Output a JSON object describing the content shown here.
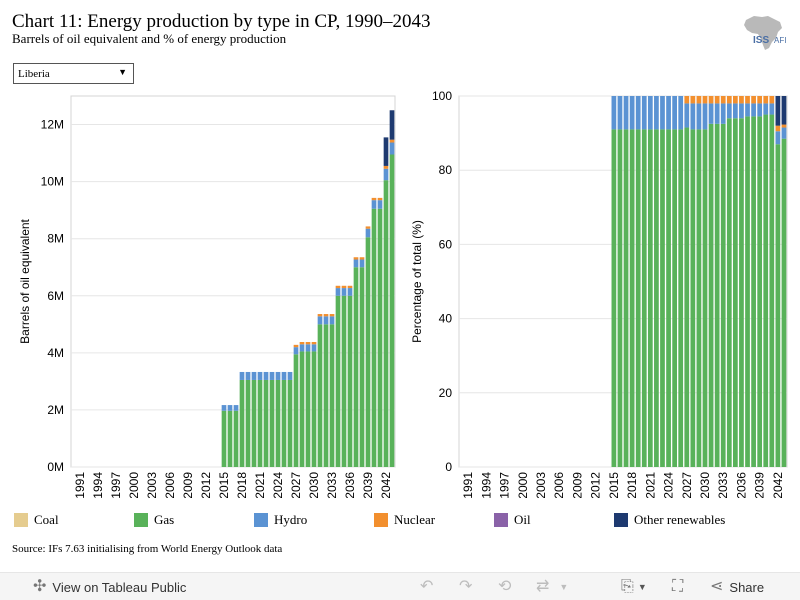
{
  "header": {
    "title": "Chart 11: Energy production by type in CP, 1990–2043",
    "subtitle": "Barrels of oil equivalent and % of energy production",
    "logo_text_1": "ISS",
    "logo_text_2": "AFI"
  },
  "filter": {
    "selected": "Liberia"
  },
  "source": "Source: IFs 7.63 initialising from World Energy Outlook data",
  "colors": {
    "Coal": "#e5cc8f",
    "Gas": "#59b25a",
    "Hydro": "#5b93d3",
    "Nuclear": "#f28f2e",
    "Oil": "#8a62a8",
    "Other renewables": "#1e3a70"
  },
  "legend": [
    "Coal",
    "Gas",
    "Hydro",
    "Nuclear",
    "Oil",
    "Other renewables"
  ],
  "toolbar": {
    "view_label": "View on Tableau Public",
    "share_label": "Share"
  },
  "chart_data": [
    {
      "type": "bar",
      "stacked": true,
      "ylabel": "Barrels of oil equivalent",
      "ylim": [
        0,
        13000000
      ],
      "yticks": [
        0,
        2000000,
        4000000,
        6000000,
        8000000,
        10000000,
        12000000
      ],
      "ytick_labels": [
        "0M",
        "2M",
        "4M",
        "6M",
        "8M",
        "10M",
        "12M"
      ],
      "x_tick_labels": [
        "1991",
        "1994",
        "1997",
        "2000",
        "2003",
        "2006",
        "2009",
        "2012",
        "2015",
        "2018",
        "2021",
        "2024",
        "2027",
        "2030",
        "2033",
        "2036",
        "2039",
        "2042"
      ],
      "grid": true,
      "x": [
        1990,
        1991,
        1992,
        1993,
        1994,
        1995,
        1996,
        1997,
        1998,
        1999,
        2000,
        2001,
        2002,
        2003,
        2004,
        2005,
        2006,
        2007,
        2008,
        2009,
        2010,
        2011,
        2012,
        2013,
        2014,
        2015,
        2016,
        2017,
        2018,
        2019,
        2020,
        2021,
        2022,
        2023,
        2024,
        2025,
        2026,
        2027,
        2028,
        2029,
        2030,
        2031,
        2032,
        2033,
        2034,
        2035,
        2036,
        2037,
        2038,
        2039,
        2040,
        2041,
        2042,
        2043
      ],
      "series": [
        {
          "name": "Coal",
          "values": [
            0,
            0,
            0,
            0,
            0,
            0,
            0,
            0,
            0,
            0,
            0,
            0,
            0,
            0,
            0,
            0,
            0,
            0,
            0,
            0,
            0,
            0,
            0,
            0,
            0,
            0,
            0,
            0,
            0,
            0,
            0,
            0,
            0,
            0,
            0,
            0,
            0,
            0,
            0,
            0,
            0,
            0,
            0,
            0,
            0,
            0,
            0,
            0,
            0,
            0,
            0,
            0,
            0,
            0
          ]
        },
        {
          "name": "Gas",
          "values": [
            0,
            0,
            0,
            0,
            0,
            0,
            0,
            0,
            0,
            0,
            0,
            0,
            0,
            0,
            0,
            0,
            0,
            0,
            0,
            0,
            0,
            0,
            0,
            0,
            0,
            1970000,
            1970000,
            1970000,
            3050000,
            3050000,
            3050000,
            3050000,
            3050000,
            3050000,
            3050000,
            3050000,
            3050000,
            3950000,
            4050000,
            4050000,
            4050000,
            5000000,
            5000000,
            5000000,
            6000000,
            6000000,
            6000000,
            7000000,
            7000000,
            8050000,
            9050000,
            9050000,
            10050000,
            10950000
          ]
        },
        {
          "name": "Hydro",
          "values": [
            0,
            0,
            0,
            0,
            0,
            0,
            0,
            0,
            0,
            0,
            0,
            0,
            0,
            0,
            0,
            0,
            0,
            0,
            0,
            0,
            0,
            0,
            0,
            0,
            0,
            200000,
            200000,
            200000,
            280000,
            280000,
            280000,
            280000,
            280000,
            280000,
            280000,
            280000,
            280000,
            250000,
            250000,
            250000,
            250000,
            280000,
            280000,
            280000,
            270000,
            270000,
            270000,
            270000,
            270000,
            300000,
            300000,
            300000,
            400000,
            420000
          ]
        },
        {
          "name": "Nuclear",
          "values": [
            0,
            0,
            0,
            0,
            0,
            0,
            0,
            0,
            0,
            0,
            0,
            0,
            0,
            0,
            0,
            0,
            0,
            0,
            0,
            0,
            0,
            0,
            0,
            0,
            0,
            0,
            0,
            0,
            0,
            0,
            0,
            0,
            0,
            0,
            0,
            0,
            0,
            80000,
            80000,
            80000,
            80000,
            80000,
            80000,
            80000,
            80000,
            80000,
            80000,
            80000,
            80000,
            80000,
            80000,
            80000,
            100000,
            100000
          ]
        },
        {
          "name": "Oil",
          "values": [
            0,
            0,
            0,
            0,
            0,
            0,
            0,
            0,
            0,
            0,
            0,
            0,
            0,
            0,
            0,
            0,
            0,
            0,
            0,
            0,
            0,
            0,
            0,
            0,
            0,
            0,
            0,
            0,
            0,
            0,
            0,
            0,
            0,
            0,
            0,
            0,
            0,
            0,
            0,
            0,
            0,
            0,
            0,
            0,
            0,
            0,
            0,
            0,
            0,
            0,
            0,
            0,
            0,
            0
          ]
        },
        {
          "name": "Other renewables",
          "values": [
            0,
            0,
            0,
            0,
            0,
            0,
            0,
            0,
            0,
            0,
            0,
            0,
            0,
            0,
            0,
            0,
            0,
            0,
            0,
            0,
            0,
            0,
            0,
            0,
            0,
            0,
            0,
            0,
            0,
            0,
            0,
            0,
            0,
            0,
            0,
            0,
            0,
            0,
            0,
            0,
            0,
            0,
            0,
            0,
            0,
            0,
            0,
            0,
            0,
            0,
            0,
            0,
            1000000,
            1030000
          ]
        }
      ]
    },
    {
      "type": "bar",
      "stacked": true,
      "ylabel": "Percentage of total (%)",
      "ylim": [
        0,
        100
      ],
      "yticks": [
        0,
        20,
        40,
        60,
        80,
        100
      ],
      "ytick_labels": [
        "0",
        "20",
        "40",
        "60",
        "80",
        "100"
      ],
      "x_tick_labels": [
        "1991",
        "1994",
        "1997",
        "2000",
        "2003",
        "2006",
        "2009",
        "2012",
        "2015",
        "2018",
        "2021",
        "2024",
        "2027",
        "2030",
        "2033",
        "2036",
        "2039",
        "2042"
      ],
      "grid": true,
      "x": [
        1990,
        1991,
        1992,
        1993,
        1994,
        1995,
        1996,
        1997,
        1998,
        1999,
        2000,
        2001,
        2002,
        2003,
        2004,
        2005,
        2006,
        2007,
        2008,
        2009,
        2010,
        2011,
        2012,
        2013,
        2014,
        2015,
        2016,
        2017,
        2018,
        2019,
        2020,
        2021,
        2022,
        2023,
        2024,
        2025,
        2026,
        2027,
        2028,
        2029,
        2030,
        2031,
        2032,
        2033,
        2034,
        2035,
        2036,
        2037,
        2038,
        2039,
        2040,
        2041,
        2042,
        2043
      ],
      "series": [
        {
          "name": "Coal",
          "values": [
            0,
            0,
            0,
            0,
            0,
            0,
            0,
            0,
            0,
            0,
            0,
            0,
            0,
            0,
            0,
            0,
            0,
            0,
            0,
            0,
            0,
            0,
            0,
            0,
            0,
            0,
            0,
            0,
            0,
            0,
            0,
            0,
            0,
            0,
            0,
            0,
            0,
            0,
            0,
            0,
            0,
            0,
            0,
            0,
            0,
            0,
            0,
            0,
            0,
            0,
            0,
            0,
            0,
            0
          ]
        },
        {
          "name": "Gas",
          "values": [
            0,
            0,
            0,
            0,
            0,
            0,
            0,
            0,
            0,
            0,
            0,
            0,
            0,
            0,
            0,
            0,
            0,
            0,
            0,
            0,
            0,
            0,
            0,
            0,
            0,
            91,
            91,
            91,
            91,
            91,
            91,
            91,
            91,
            91,
            91,
            91,
            91,
            91.5,
            91,
            91,
            91,
            92.5,
            92.5,
            92.5,
            94,
            94,
            94,
            94.5,
            94.5,
            94.5,
            95,
            95,
            87,
            88.5
          ]
        },
        {
          "name": "Hydro",
          "values": [
            0,
            0,
            0,
            0,
            0,
            0,
            0,
            0,
            0,
            0,
            0,
            0,
            0,
            0,
            0,
            0,
            0,
            0,
            0,
            0,
            0,
            0,
            0,
            0,
            0,
            9,
            9,
            9,
            9,
            9,
            9,
            9,
            9,
            9,
            9,
            9,
            9,
            6.5,
            7,
            7,
            7,
            5.5,
            5.5,
            5.5,
            4,
            4,
            4,
            3.5,
            3.5,
            3.5,
            3,
            3,
            3.5,
            3
          ]
        },
        {
          "name": "Nuclear",
          "values": [
            0,
            0,
            0,
            0,
            0,
            0,
            0,
            0,
            0,
            0,
            0,
            0,
            0,
            0,
            0,
            0,
            0,
            0,
            0,
            0,
            0,
            0,
            0,
            0,
            0,
            0,
            0,
            0,
            0,
            0,
            0,
            0,
            0,
            0,
            0,
            0,
            0,
            2,
            2,
            2,
            2,
            2,
            2,
            2,
            2,
            2,
            2,
            2,
            2,
            2,
            2,
            2,
            1.5,
            0.8
          ]
        },
        {
          "name": "Oil",
          "values": [
            0,
            0,
            0,
            0,
            0,
            0,
            0,
            0,
            0,
            0,
            0,
            0,
            0,
            0,
            0,
            0,
            0,
            0,
            0,
            0,
            0,
            0,
            0,
            0,
            0,
            0,
            0,
            0,
            0,
            0,
            0,
            0,
            0,
            0,
            0,
            0,
            0,
            0,
            0,
            0,
            0,
            0,
            0,
            0,
            0,
            0,
            0,
            0,
            0,
            0,
            0,
            0,
            0,
            0
          ]
        },
        {
          "name": "Other renewables",
          "values": [
            0,
            0,
            0,
            0,
            0,
            0,
            0,
            0,
            0,
            0,
            0,
            0,
            0,
            0,
            0,
            0,
            0,
            0,
            0,
            0,
            0,
            0,
            0,
            0,
            0,
            0,
            0,
            0,
            0,
            0,
            0,
            0,
            0,
            0,
            0,
            0,
            0,
            0,
            0,
            0,
            0,
            0,
            0,
            0,
            0,
            0,
            0,
            0,
            0,
            0,
            0,
            0,
            8,
            7.7
          ]
        }
      ]
    }
  ]
}
